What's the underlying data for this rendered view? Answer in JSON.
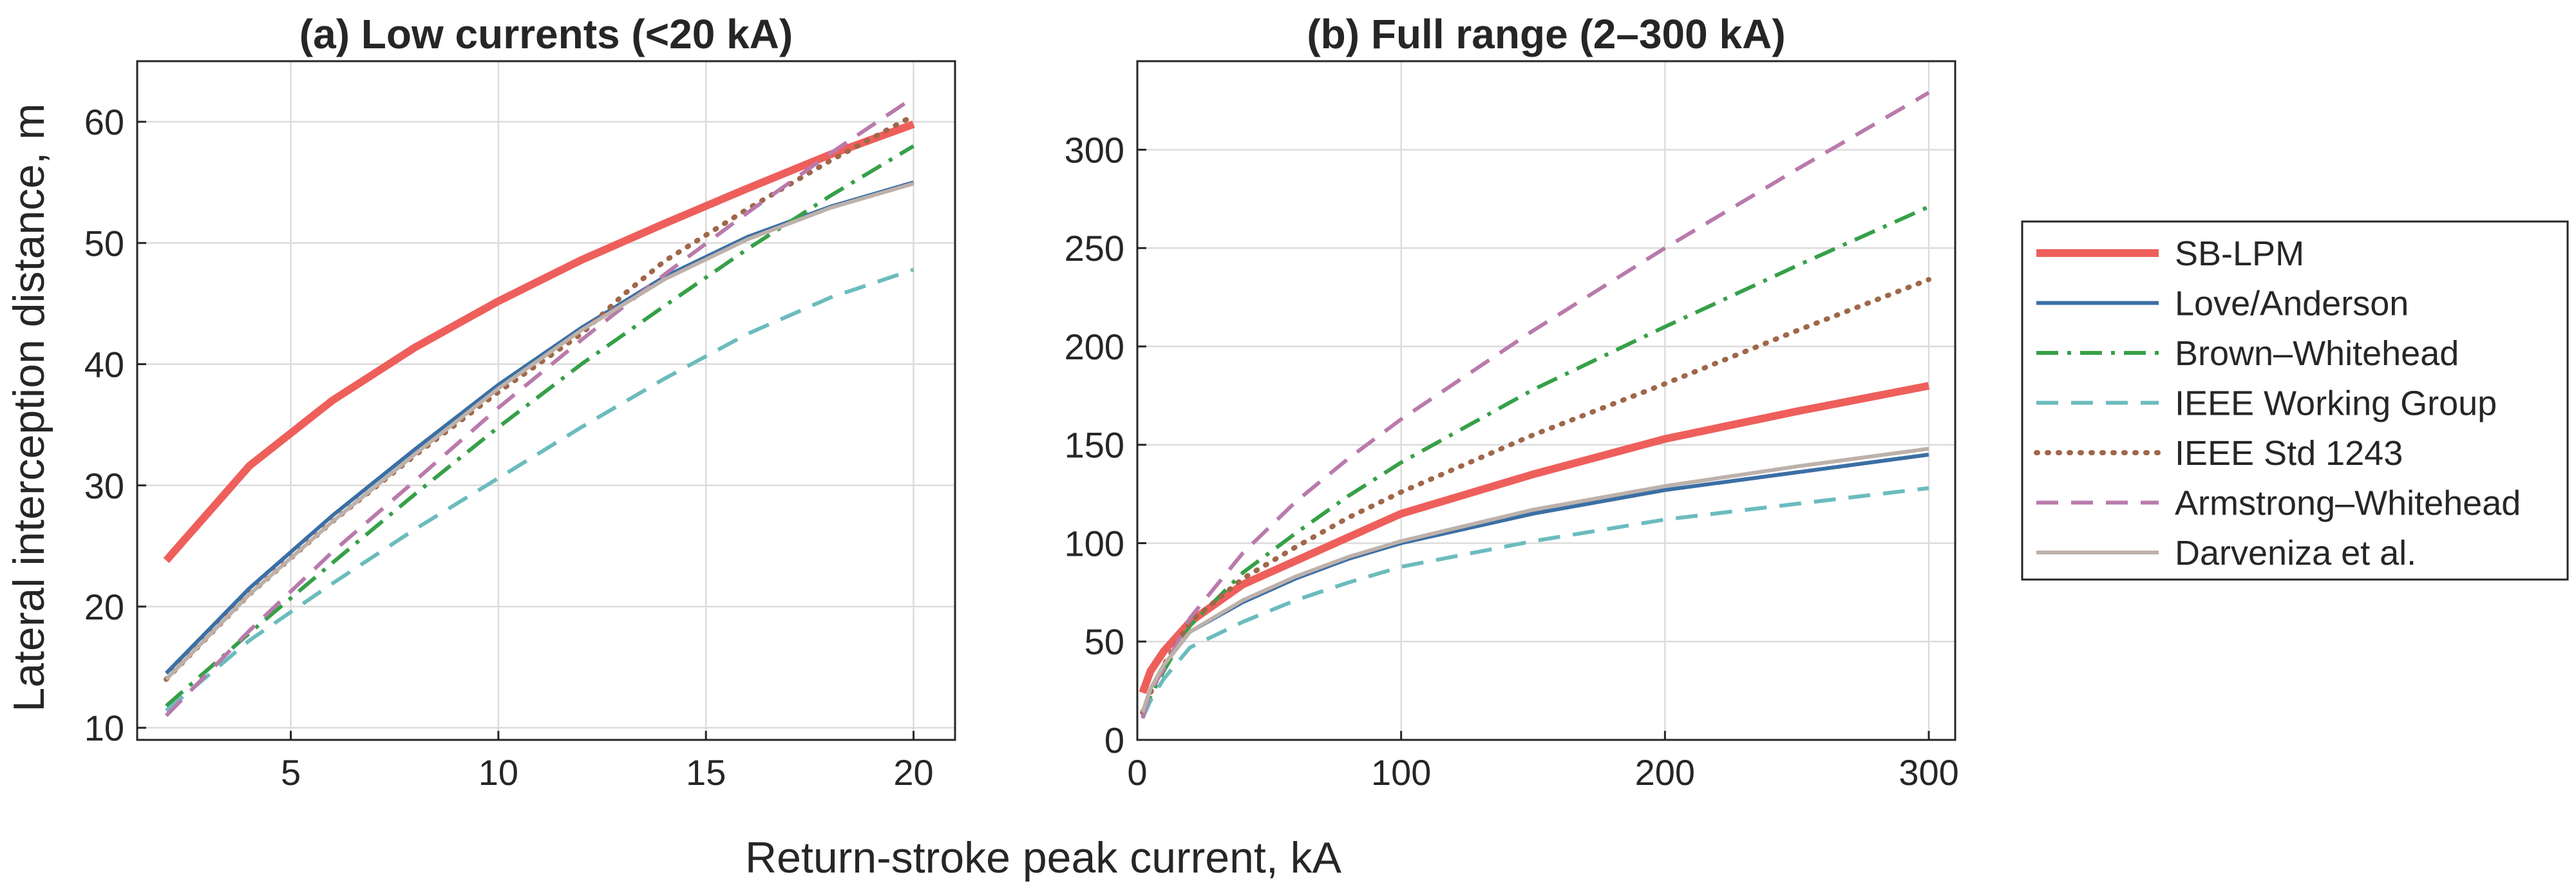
{
  "figure": {
    "xlabel": "Return-stroke peak current, kA",
    "ylabel": "Lateral interception distance, m"
  },
  "chart_data": [
    {
      "type": "line",
      "title": "(a) Low currents (<20 kA)",
      "xlim": [
        1.3,
        21
      ],
      "ylim": [
        9,
        65
      ],
      "xticks": [
        5,
        10,
        15,
        20
      ],
      "yticks": [
        10,
        20,
        30,
        40,
        50,
        60
      ],
      "xtick_labels": [
        "5",
        "10",
        "15",
        "20"
      ],
      "ytick_labels": [
        "10",
        "20",
        "30",
        "40",
        "50",
        "60"
      ],
      "grid": true,
      "series": [
        {
          "name": "SB-LPM",
          "color": "#ee5f5b",
          "dash": "solid",
          "width": 12,
          "x": [
            2,
            4,
            6,
            8,
            10,
            12,
            14,
            16,
            18,
            20
          ],
          "y": [
            23.8,
            31.6,
            37.0,
            41.4,
            45.2,
            48.6,
            51.6,
            54.5,
            57.3,
            59.8
          ]
        },
        {
          "name": "Love/Anderson",
          "color": "#3b6fa5",
          "dash": "solid",
          "width": 6,
          "x": [
            2,
            4,
            6,
            8,
            10,
            12,
            14,
            16,
            18,
            20
          ],
          "y": [
            14.5,
            21.5,
            27.5,
            33.0,
            38.3,
            43.0,
            47.2,
            50.5,
            53.0,
            55.0
          ]
        },
        {
          "name": "Brown-Whitehead",
          "color": "#36a048",
          "dash": "dashdot",
          "width": 6,
          "x": [
            2,
            4,
            6,
            8,
            10,
            12,
            14,
            16,
            18,
            20
          ],
          "y": [
            11.8,
            17.8,
            23.6,
            29.3,
            34.8,
            40.0,
            44.8,
            49.5,
            53.9,
            58.0
          ]
        },
        {
          "name": "IEEE Working Group",
          "color": "#6bbcbd",
          "dash": "dashed",
          "width": 6,
          "x": [
            2,
            4,
            6,
            8,
            10,
            12,
            14,
            16,
            18,
            20
          ],
          "y": [
            11.4,
            17.2,
            21.9,
            26.4,
            30.6,
            34.8,
            38.8,
            42.5,
            45.5,
            47.8
          ]
        },
        {
          "name": "IEEE Std 1243",
          "color": "#a0674a",
          "dash": "dotted",
          "width": 8,
          "x": [
            2,
            4,
            6,
            8,
            10,
            12,
            13,
            14,
            16,
            18,
            20
          ],
          "y": [
            14.0,
            21.0,
            27.0,
            32.5,
            37.7,
            42.5,
            45.7,
            48.5,
            52.8,
            56.8,
            60.5
          ]
        },
        {
          "name": "Armstrong-Whitehead",
          "color": "#b97aac",
          "dash": "dashed",
          "width": 6,
          "x": [
            2,
            4,
            6,
            8,
            10,
            12,
            14,
            16,
            18,
            20
          ],
          "y": [
            11.0,
            18.0,
            24.5,
            30.4,
            36.4,
            42.0,
            47.4,
            52.5,
            57.4,
            62.0
          ]
        },
        {
          "name": "Darveniza et al.",
          "color": "#bdb1aa",
          "dash": "solid",
          "width": 6,
          "x": [
            2,
            4,
            6,
            8,
            10,
            12,
            14,
            16,
            18,
            20
          ],
          "y": [
            14.0,
            21.0,
            27.0,
            32.6,
            38.0,
            42.8,
            47.0,
            50.3,
            52.9,
            54.9
          ]
        }
      ]
    },
    {
      "type": "line",
      "title": "(b) Full range (2–300 kA)",
      "xlim": [
        0,
        310
      ],
      "ylim": [
        0,
        345
      ],
      "xticks": [
        0,
        100,
        200,
        300
      ],
      "yticks": [
        0,
        50,
        100,
        150,
        200,
        250,
        300
      ],
      "xtick_labels": [
        "0",
        "100",
        "200",
        "300"
      ],
      "ytick_labels": [
        "0",
        "50",
        "100",
        "150",
        "200",
        "250",
        "300"
      ],
      "grid": true,
      "series": [
        {
          "name": "SB-LPM",
          "color": "#ee5f5b",
          "dash": "solid",
          "width": 12,
          "x": [
            2,
            5,
            10,
            20,
            40,
            60,
            80,
            100,
            150,
            200,
            250,
            300
          ],
          "y": [
            24,
            35,
            45,
            60,
            79,
            91,
            103,
            115,
            135,
            153,
            167,
            180
          ]
        },
        {
          "name": "Love/Anderson",
          "color": "#3b6fa5",
          "dash": "solid",
          "width": 6,
          "x": [
            2,
            5,
            10,
            20,
            40,
            60,
            80,
            100,
            150,
            200,
            250,
            300
          ],
          "y": [
            14,
            26,
            38,
            55,
            70,
            82,
            92,
            100,
            115,
            127,
            136,
            145
          ]
        },
        {
          "name": "Brown-Whitehead",
          "color": "#36a048",
          "dash": "dashdot",
          "width": 6,
          "x": [
            2,
            5,
            10,
            20,
            40,
            60,
            80,
            100,
            150,
            200,
            250,
            300
          ],
          "y": [
            12,
            22,
            35,
            58,
            85,
            105,
            124,
            141,
            178,
            210,
            241,
            271
          ]
        },
        {
          "name": "IEEE Working Group",
          "color": "#6bbcbd",
          "dash": "dashed",
          "width": 6,
          "x": [
            2,
            5,
            10,
            20,
            40,
            60,
            80,
            100,
            150,
            200,
            250,
            300
          ],
          "y": [
            11,
            20,
            31,
            47,
            60,
            71,
            80,
            88,
            101,
            112,
            120,
            128
          ]
        },
        {
          "name": "IEEE Std 1243",
          "color": "#a0674a",
          "dash": "dotted",
          "width": 8,
          "x": [
            2,
            5,
            10,
            20,
            40,
            60,
            80,
            100,
            150,
            200,
            250,
            300
          ],
          "y": [
            14,
            24,
            38,
            60,
            82,
            98,
            113,
            126,
            155,
            181,
            208,
            234
          ]
        },
        {
          "name": "Armstrong-Whitehead",
          "color": "#b97aac",
          "dash": "dashed",
          "width": 6,
          "x": [
            2,
            5,
            10,
            20,
            40,
            60,
            80,
            100,
            150,
            200,
            250,
            300
          ],
          "y": [
            11,
            25,
            36,
            62,
            95,
            121,
            143,
            163,
            208,
            250,
            290,
            329
          ]
        },
        {
          "name": "Darveniza et al.",
          "color": "#bdb1aa",
          "dash": "solid",
          "width": 6,
          "x": [
            2,
            5,
            10,
            20,
            40,
            60,
            80,
            100,
            150,
            200,
            250,
            300
          ],
          "y": [
            14,
            26,
            38,
            55,
            71,
            83,
            93,
            101,
            117,
            129,
            139,
            148
          ]
        }
      ]
    }
  ],
  "legend": {
    "placement": "right",
    "items": [
      "SB-LPM",
      "Love/Anderson",
      "Brown–Whitehead",
      "IEEE Working Group",
      "IEEE Std 1243",
      "Armstrong–Whitehead",
      "Darveniza et al."
    ]
  }
}
